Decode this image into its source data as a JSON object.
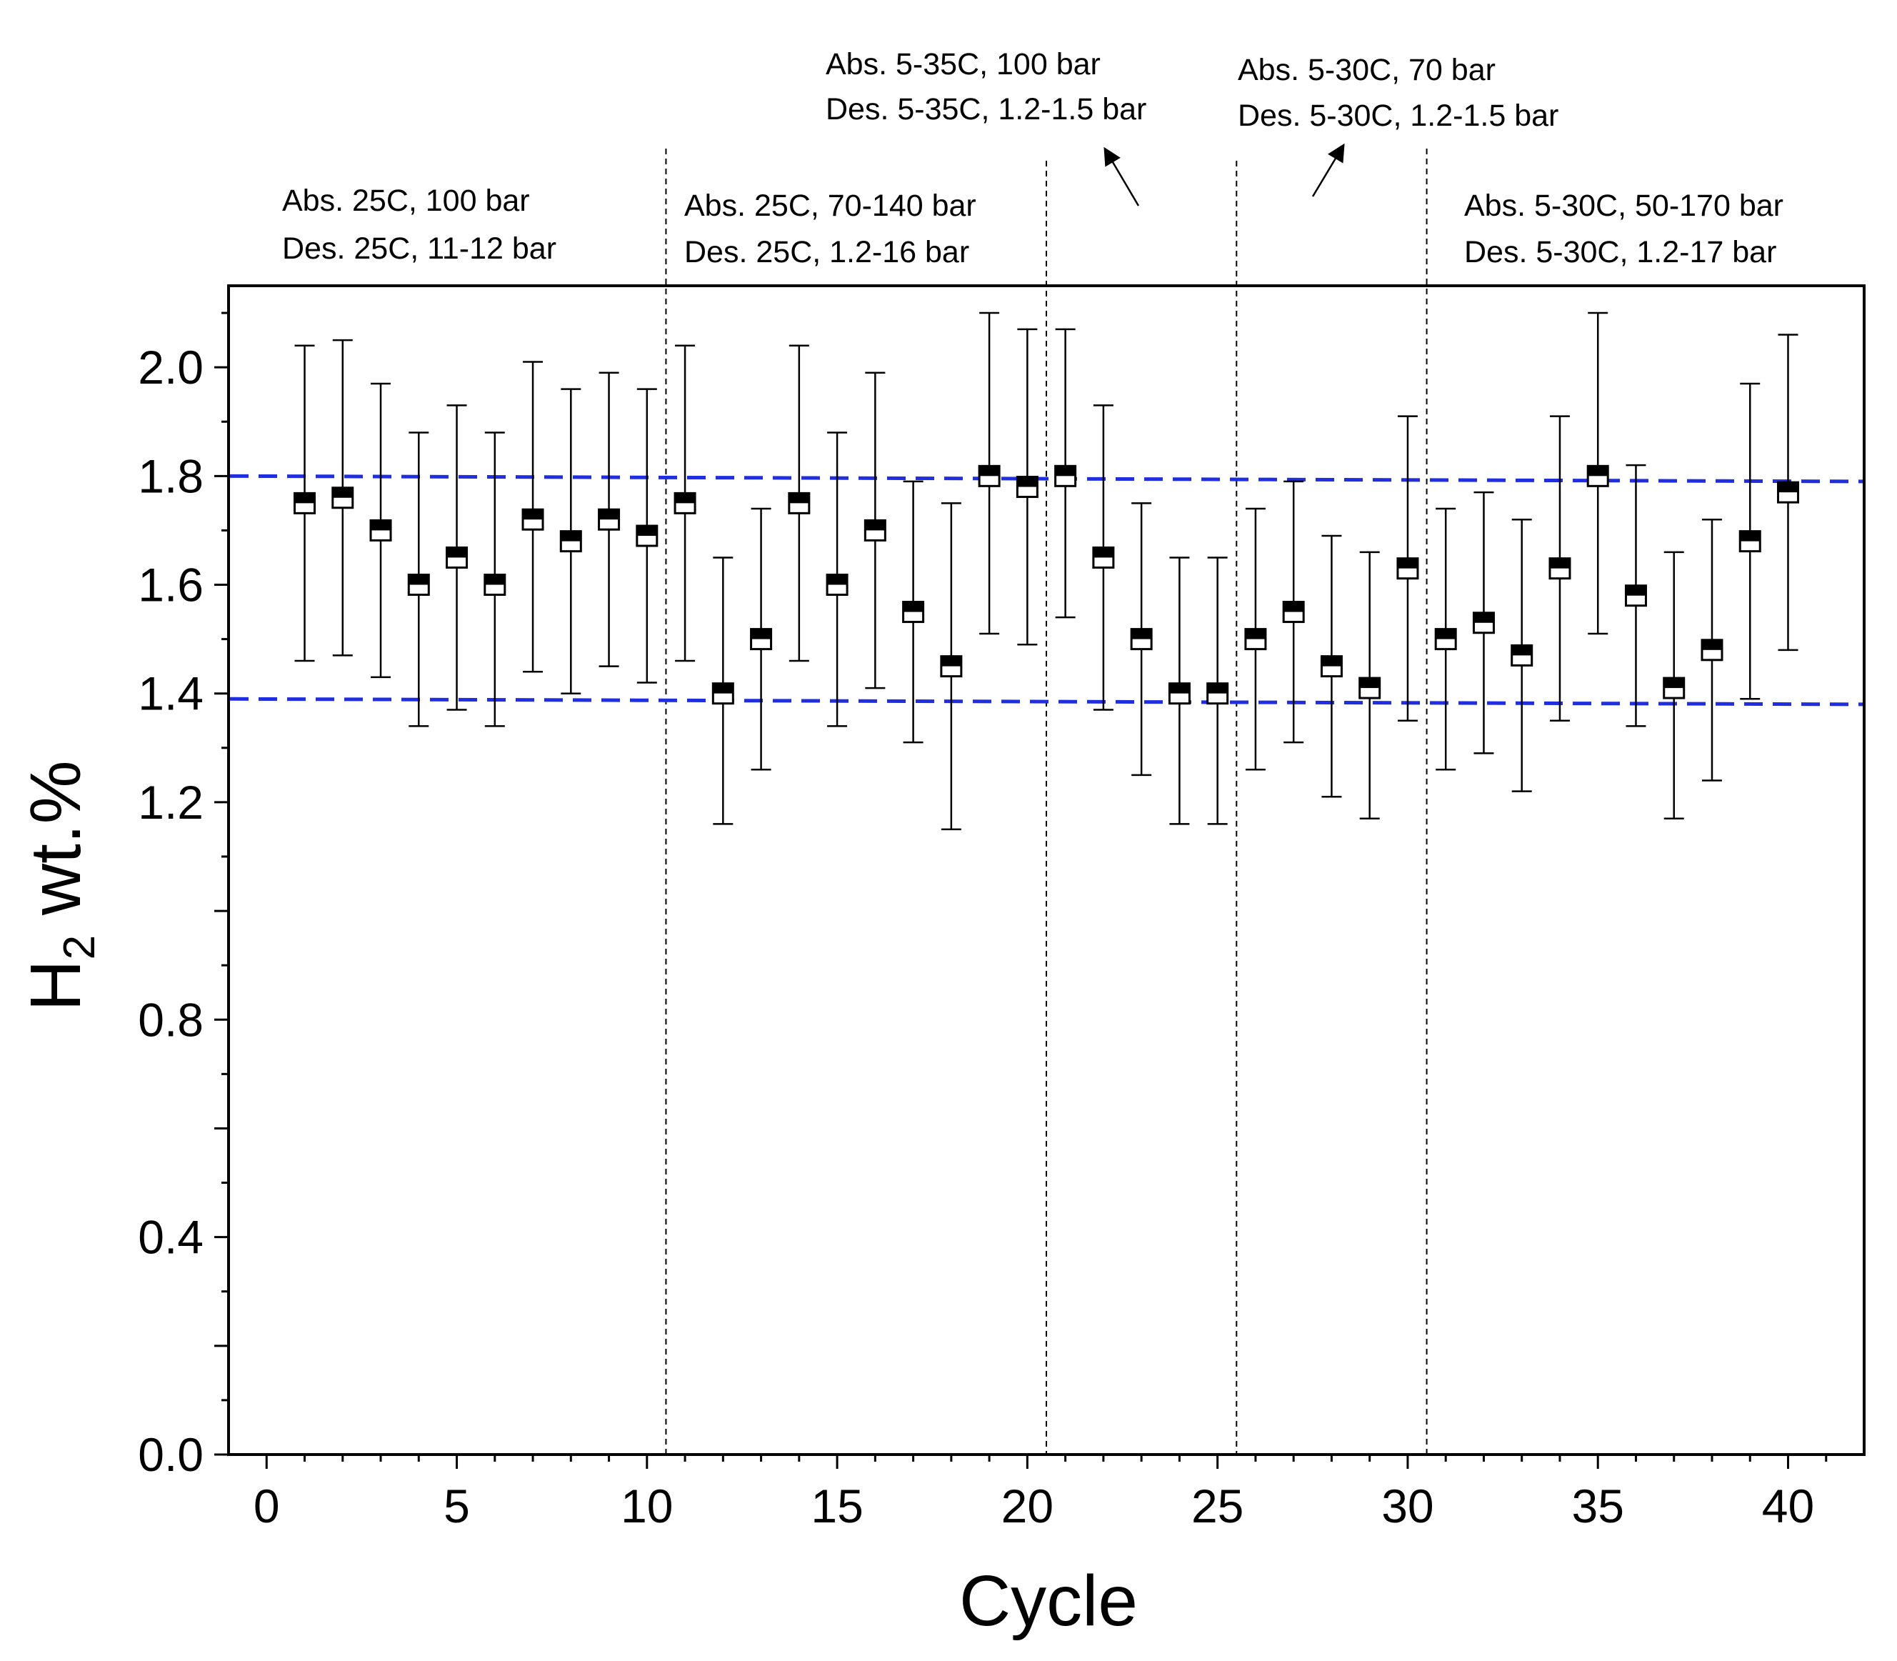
{
  "chart_data": {
    "type": "scatter",
    "title": "",
    "xlabel": "Cycle",
    "ylabel": {
      "main": "H",
      "subscript": "2",
      "suffix": " wt.%"
    },
    "xlim": [
      -1,
      42
    ],
    "ylim": [
      0.0,
      2.15
    ],
    "x_ticks": [
      0,
      5,
      10,
      15,
      20,
      25,
      30,
      35,
      40
    ],
    "x_tick_labels": [
      "0",
      "5",
      "10",
      "15",
      "20",
      "25",
      "30",
      "35",
      "40"
    ],
    "y_ticks": [
      0.0,
      0.4,
      0.8,
      1.2,
      1.4,
      1.6,
      1.8,
      2.0
    ],
    "y_tick_labels": [
      "0.0",
      "0.4",
      "0.8",
      "1.2",
      "1.4",
      "1.6",
      "1.8",
      "2.0"
    ],
    "grid": false,
    "series": [
      {
        "name": "H2 wt.% per cycle",
        "marker": "half-filled square",
        "x": [
          1,
          2,
          3,
          4,
          5,
          6,
          7,
          8,
          9,
          10,
          11,
          12,
          13,
          14,
          15,
          16,
          17,
          18,
          19,
          20,
          21,
          22,
          23,
          24,
          25,
          26,
          27,
          28,
          29,
          30,
          31,
          32,
          33,
          34,
          35,
          36,
          37,
          38,
          39,
          40
        ],
        "y": [
          1.75,
          1.76,
          1.7,
          1.6,
          1.65,
          1.6,
          1.72,
          1.68,
          1.72,
          1.69,
          1.75,
          1.4,
          1.5,
          1.75,
          1.6,
          1.7,
          1.55,
          1.45,
          1.8,
          1.78,
          1.8,
          1.65,
          1.5,
          1.4,
          1.4,
          1.5,
          1.55,
          1.45,
          1.41,
          1.63,
          1.5,
          1.53,
          1.47,
          1.63,
          1.8,
          1.58,
          1.41,
          1.48,
          1.68,
          1.77
        ],
        "err_high": [
          2.04,
          2.05,
          1.97,
          1.88,
          1.93,
          1.88,
          2.01,
          1.96,
          1.99,
          1.96,
          2.04,
          1.65,
          1.74,
          2.04,
          1.88,
          1.99,
          1.79,
          1.75,
          2.1,
          2.07,
          2.07,
          1.93,
          1.75,
          1.65,
          1.65,
          1.74,
          1.79,
          1.69,
          1.66,
          1.91,
          1.74,
          1.77,
          1.72,
          1.91,
          2.1,
          1.82,
          1.66,
          1.72,
          1.97,
          2.06
        ],
        "err_low": [
          1.46,
          1.47,
          1.43,
          1.34,
          1.37,
          1.34,
          1.44,
          1.4,
          1.45,
          1.42,
          1.46,
          1.16,
          1.26,
          1.46,
          1.34,
          1.41,
          1.31,
          1.15,
          1.51,
          1.49,
          1.54,
          1.37,
          1.25,
          1.16,
          1.16,
          1.26,
          1.31,
          1.21,
          1.17,
          1.35,
          1.26,
          1.29,
          1.22,
          1.35,
          1.51,
          1.34,
          1.17,
          1.24,
          1.39,
          1.48
        ]
      }
    ],
    "reference_lines": [
      {
        "name": "upper-dashed",
        "y_start": 1.8,
        "y_end": 1.79,
        "color": "#1f2fe0"
      },
      {
        "name": "lower-dashed",
        "y_start": 1.39,
        "y_end": 1.38,
        "color": "#1f2fe0"
      }
    ],
    "separators": [
      10.5,
      20.5,
      25.5,
      30.5
    ],
    "annotations": [
      {
        "lines": [
          "Abs. 25C, 100 bar",
          "Des. 25C, 11-12 bar"
        ]
      },
      {
        "lines": [
          "Abs. 25C, 70-140 bar",
          "Des. 25C, 1.2-16 bar"
        ]
      },
      {
        "lines": [
          "Abs. 5-35C, 100 bar",
          "Des. 5-35C, 1.2-1.5 bar"
        ]
      },
      {
        "lines": [
          "Abs. 5-30C, 70 bar",
          "Des. 5-30C, 1.2-1.5 bar"
        ]
      },
      {
        "lines": [
          "Abs. 5-30C, 50-170 bar",
          "Des. 5-30C, 1.2-17 bar"
        ]
      }
    ],
    "colors": {
      "axis": "#000000",
      "marker_fill": "#000000",
      "reference": "#1f2fe0"
    }
  }
}
